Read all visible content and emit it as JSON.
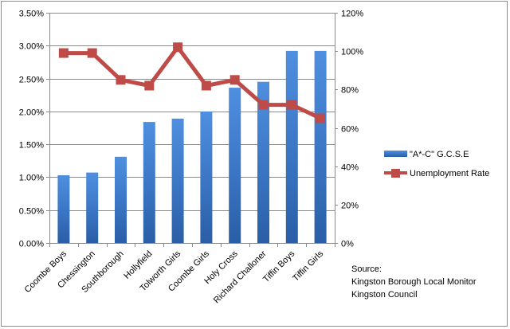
{
  "chart_data": {
    "type": "bar",
    "categories": [
      "Coombe Boys",
      "Chessington",
      "Southborough",
      "Hollyfield",
      "Tolworth Girls",
      "Coombe Girls",
      "Holy Cross",
      "Richard Challoner",
      "Tiffin Boys",
      "Tiffin Girls"
    ],
    "series": [
      {
        "name": "\"A*-C\" G.C.S.E",
        "type": "bar",
        "axis": "left",
        "color": "#3b78c4",
        "values": [
          0.0103,
          0.0107,
          0.0131,
          0.0184,
          0.0189,
          0.02,
          0.0236,
          0.0245,
          0.0292,
          0.0292
        ]
      },
      {
        "name": "Unemployment Rate",
        "type": "line",
        "axis": "right",
        "color": "#be4b48",
        "values": [
          0.99,
          0.99,
          0.85,
          0.82,
          1.02,
          0.82,
          0.85,
          0.72,
          0.72,
          0.65
        ]
      }
    ],
    "y_left": {
      "ylim": [
        0,
        0.035
      ],
      "ticks": [
        0,
        0.005,
        0.01,
        0.015,
        0.02,
        0.025,
        0.03,
        0.035
      ],
      "tick_labels": [
        "0.00%",
        "0.50%",
        "1.00%",
        "1.50%",
        "2.00%",
        "2.50%",
        "3.00%",
        "3.50%"
      ]
    },
    "y_right": {
      "ylim": [
        0,
        1.2
      ],
      "ticks": [
        0,
        0.2,
        0.4,
        0.6,
        0.8,
        1.0,
        1.2
      ],
      "tick_labels": [
        "0%",
        "20%",
        "40%",
        "60%",
        "80%",
        "100%",
        "120%"
      ]
    },
    "grid": true,
    "legend_position": "right",
    "title": "",
    "xlabel": "",
    "ylabel": ""
  },
  "source": {
    "heading": "Source:",
    "line1": "Kingston Borough Local Monitor",
    "line2": "Kingston Council"
  }
}
